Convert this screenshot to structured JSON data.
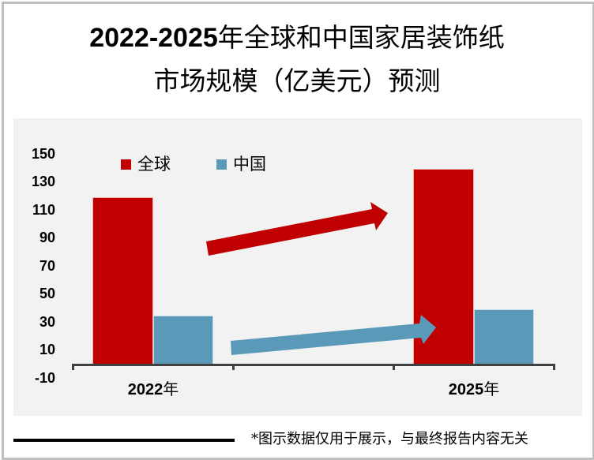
{
  "title": {
    "line1_num": "2022-2025",
    "line1_text": "年全球和中国家居装饰纸",
    "line2": "市场规模（亿美元）预测"
  },
  "colors": {
    "global": "#c00000",
    "china": "#5a9ab8",
    "plot_bg": "#f2f2f2",
    "axis": "#404040",
    "frame": "#bfbfbf"
  },
  "legend": [
    {
      "label": "全球",
      "color": "#c00000"
    },
    {
      "label": "中国",
      "color": "#5a9ab8"
    }
  ],
  "y_axis": {
    "ticks": [
      "150",
      "130",
      "110",
      "90",
      "70",
      "50",
      "30",
      "10",
      "-10"
    ]
  },
  "x_axis": {
    "categories": [
      {
        "num": "2022",
        "suffix": "年"
      },
      {
        "num": "2025",
        "suffix": "年"
      }
    ]
  },
  "footnote": "*图示数据仅用于展示，与最终报告内容无关",
  "chart_data": {
    "type": "bar",
    "title": "2022-2025年全球和中国家居装饰纸市场规模（亿美元）预测",
    "categories": [
      "2022年",
      "2025年"
    ],
    "series": [
      {
        "name": "全球",
        "values": [
          120,
          140
        ],
        "color": "#c00000"
      },
      {
        "name": "中国",
        "values": [
          35,
          40
        ],
        "color": "#5a9ab8"
      }
    ],
    "xlabel": "",
    "ylabel": "",
    "yticks": [
      150,
      130,
      110,
      90,
      70,
      50,
      30,
      10,
      -10
    ],
    "ylim": [
      -10,
      150
    ],
    "grid": false,
    "legend_position": "top-left inside",
    "annotations": [
      "red arrow trending up from 2022 global to 2025 global",
      "blue arrow trending up from 2022 China to 2025 China"
    ]
  }
}
